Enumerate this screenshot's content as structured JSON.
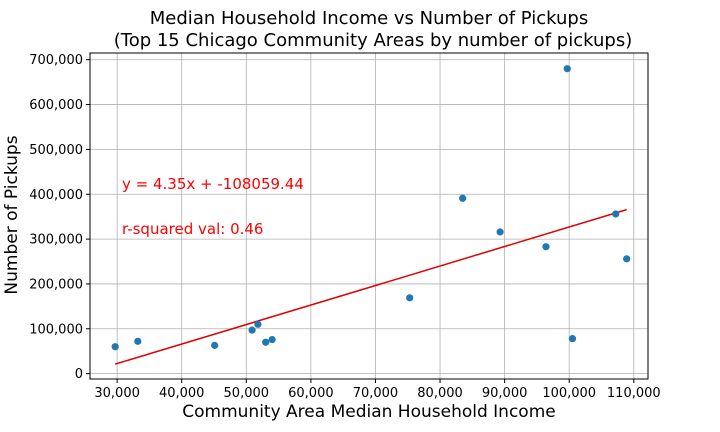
{
  "chart_data": {
    "type": "scatter",
    "title": "Median Household Income vs Number of Pickups",
    "subtitle": "(Top 15 Chicago Community Areas by number of pickups)",
    "xlabel": "Community Area Median Household Income",
    "ylabel": "Number of Pickups",
    "xlim": [
      25800,
      112200
    ],
    "ylim": [
      -12000,
      715000
    ],
    "xticks": [
      30000,
      40000,
      50000,
      60000,
      70000,
      80000,
      90000,
      100000,
      110000
    ],
    "xtick_labels": [
      "30,000",
      "40,000",
      "50,000",
      "60,000",
      "70,000",
      "80,000",
      "90,000",
      "100,000",
      "110,000"
    ],
    "yticks": [
      0,
      100000,
      200000,
      300000,
      400000,
      500000,
      600000,
      700000
    ],
    "ytick_labels": [
      "0",
      "100,000",
      "200,000",
      "300,000",
      "400,000",
      "500,000",
      "600,000",
      "700,000"
    ],
    "grid": true,
    "points": [
      {
        "x": 29700,
        "y": 60000
      },
      {
        "x": 33200,
        "y": 72000
      },
      {
        "x": 45100,
        "y": 63000
      },
      {
        "x": 50900,
        "y": 97000
      },
      {
        "x": 51800,
        "y": 110000
      },
      {
        "x": 53000,
        "y": 70000
      },
      {
        "x": 54000,
        "y": 76000
      },
      {
        "x": 75300,
        "y": 169000
      },
      {
        "x": 83500,
        "y": 391000
      },
      {
        "x": 89300,
        "y": 316000
      },
      {
        "x": 96400,
        "y": 283000
      },
      {
        "x": 99700,
        "y": 680000
      },
      {
        "x": 100500,
        "y": 78000
      },
      {
        "x": 107200,
        "y": 356000
      },
      {
        "x": 108900,
        "y": 256000
      }
    ],
    "regression": {
      "slope": 4.35,
      "intercept": -108059.44,
      "x_range": [
        29700,
        108900
      ],
      "equation_text": "y = 4.35x + -108059.44",
      "r2_text": "r-squared val: 0.46"
    },
    "colors": {
      "points": "#1f77b4",
      "line": "#e00000",
      "annotation": "#ff0000",
      "grid": "#b0b0b0"
    }
  }
}
